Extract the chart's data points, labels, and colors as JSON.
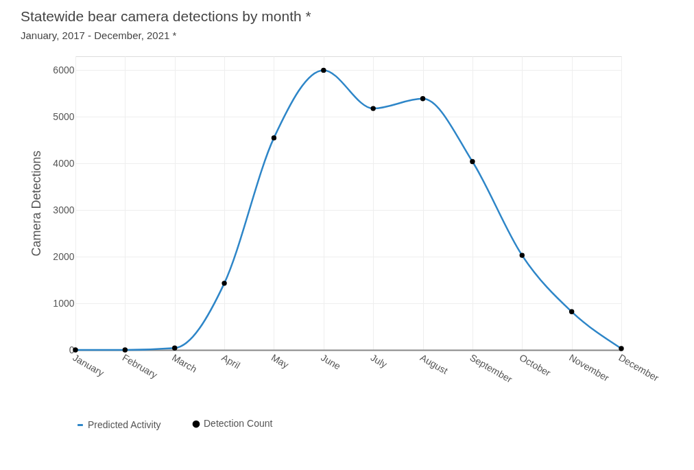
{
  "chart_data": {
    "type": "line",
    "title": "Statewide bear camera detections by month *",
    "subtitle": "January, 2017 - December, 2021 *",
    "ylabel": "Camera Detections",
    "categories": [
      "January",
      "February",
      "March",
      "April",
      "May",
      "June",
      "July",
      "August",
      "September",
      "October",
      "November",
      "December"
    ],
    "series": [
      {
        "name": "Predicted Activity",
        "color": "#2e86c8",
        "values": [
          0,
          0,
          40,
          1430,
          4550,
          6000,
          5180,
          5390,
          4040,
          2030,
          820,
          30
        ]
      },
      {
        "name": "Detection Count",
        "type": "scatter",
        "color": "#000000",
        "values": [
          0,
          0,
          40,
          1430,
          4550,
          6000,
          5180,
          5390,
          4040,
          2030,
          820,
          30
        ]
      }
    ],
    "ylim": [
      0,
      6300
    ],
    "yticks": [
      0,
      1000,
      2000,
      3000,
      4000,
      5000,
      6000
    ],
    "grid": true,
    "legend": "bottom left"
  }
}
